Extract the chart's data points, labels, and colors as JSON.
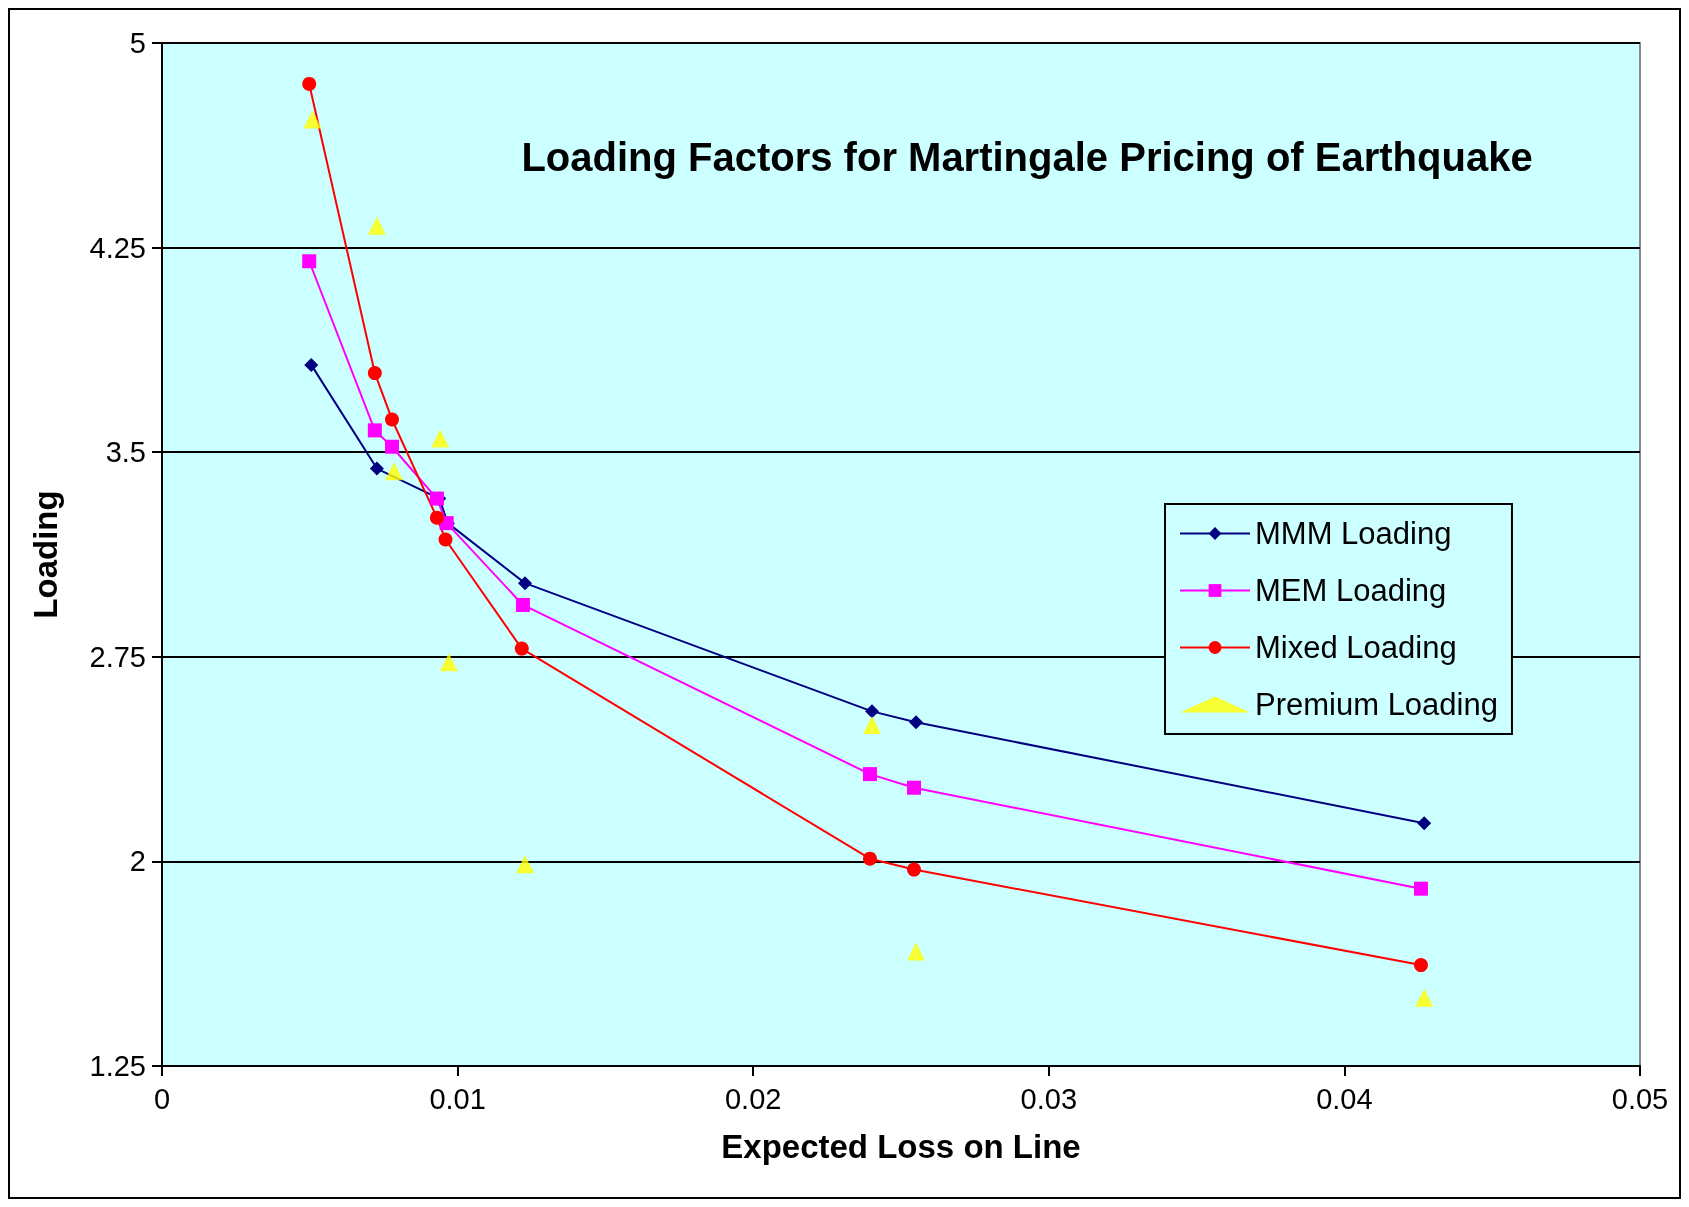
{
  "chart_data": {
    "type": "line",
    "title": "Loading Factors for Martingale Pricing of Earthquake",
    "xlabel": "Expected Loss on Line",
    "ylabel": "Loading",
    "series": [
      {
        "name": "MMM Loading",
        "color": "#000080",
        "marker": "diamond",
        "x": [
          0.00505,
          0.00727,
          0.00938,
          0.00967,
          0.01228,
          0.02402,
          0.02551,
          0.0427
        ],
        "values": [
          3.82,
          3.44,
          3.33,
          3.24,
          3.02,
          2.55,
          2.51,
          2.14
        ]
      },
      {
        "name": "MEM Loading",
        "color": "#ff00ff",
        "marker": "square",
        "x": [
          0.00498,
          0.0072,
          0.00778,
          0.0093,
          0.00963,
          0.01221,
          0.02395,
          0.02544,
          0.04259
        ],
        "values": [
          4.2,
          3.58,
          3.52,
          3.33,
          3.24,
          2.94,
          2.32,
          2.27,
          1.9
        ]
      },
      {
        "name": "Mixed Loading",
        "color": "#ff0000",
        "marker": "circle",
        "x": [
          0.00498,
          0.0072,
          0.00778,
          0.0093,
          0.00959,
          0.01217,
          0.02395,
          0.02544,
          0.04259
        ],
        "values": [
          4.85,
          3.79,
          3.62,
          3.26,
          3.18,
          2.78,
          2.01,
          1.97,
          1.62
        ]
      },
      {
        "name": "Premium Loading",
        "type": "scatter",
        "color": "#ffff00",
        "marker": "triangle",
        "x": [
          0.00509,
          0.00727,
          0.00785,
          0.00941,
          0.0097,
          0.01228,
          0.02402,
          0.02551,
          0.0427
        ],
        "values": [
          4.72,
          4.33,
          3.43,
          3.55,
          2.73,
          1.99,
          2.5,
          1.67,
          1.5
        ]
      }
    ],
    "xlim": [
      0,
      0.05
    ],
    "xticks": [
      0,
      0.01,
      0.02,
      0.03,
      0.04,
      0.05
    ],
    "ylim": [
      1.25,
      5
    ],
    "yticks": [
      1.25,
      2,
      2.75,
      3.5,
      4.25,
      5
    ],
    "grid": "y",
    "legend": "right"
  }
}
